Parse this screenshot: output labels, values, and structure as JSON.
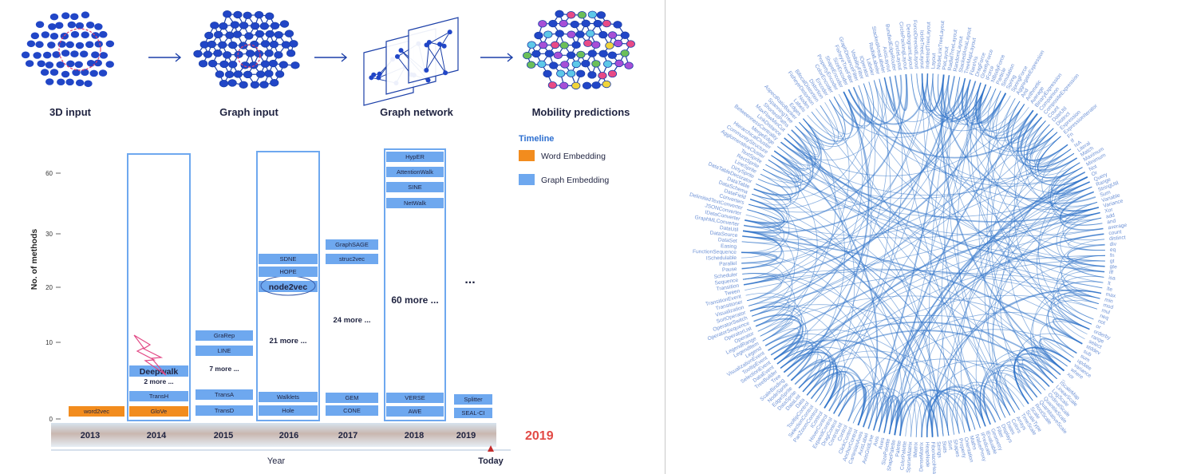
{
  "pipeline": {
    "steps": [
      {
        "label": "3D input"
      },
      {
        "label": "Graph input"
      },
      {
        "label": "Graph network"
      },
      {
        "label": "Mobility predictions"
      }
    ]
  },
  "timeline_chart": {
    "legend": {
      "title": "Timeline",
      "items": [
        {
          "label": "Word Embedding",
          "color": "#f28c1e"
        },
        {
          "label": "Graph Embedding",
          "color": "#6ea8ef"
        }
      ]
    },
    "ylabel": "No. of methods",
    "y_ticks": [
      "0",
      "10",
      "20",
      "30",
      "60"
    ],
    "xlabel": "Year",
    "years": [
      "2013",
      "2014",
      "2015",
      "2016",
      "2017",
      "2018",
      "2019"
    ],
    "current_year": "2019",
    "today_label": "Today",
    "ellipsis": "...",
    "columns": [
      {
        "year": "2013",
        "methods": [
          "word2vec"
        ],
        "more": ""
      },
      {
        "year": "2014",
        "methods": [
          "GloVe",
          "TransH",
          "Deepwalk"
        ],
        "more": "2 more ..."
      },
      {
        "year": "2015",
        "methods": [
          "TransD",
          "TransA",
          "LINE",
          "GraRep"
        ],
        "more": "7 more ..."
      },
      {
        "year": "2016",
        "methods": [
          "Hole",
          "Walklets",
          "node2vec",
          "HOPE",
          "SDNE"
        ],
        "more": "21 more ..."
      },
      {
        "year": "2017",
        "methods": [
          "CONE",
          "GEM",
          "struc2vec",
          "GraphSAGE"
        ],
        "more": "24 more ..."
      },
      {
        "year": "2018",
        "methods": [
          "AWE",
          "VERSE",
          "NetWalk",
          "SINE",
          "AttentionWalk",
          "HypER"
        ],
        "more": "60 more ..."
      },
      {
        "year": "2019",
        "methods": [
          "SEAL-CI",
          "Splitter"
        ],
        "more": ""
      }
    ]
  },
  "edge_bundle": {
    "link_color": "#2f73c9",
    "label_color": "#6f93d6",
    "nodes": [
      "FlareVis",
      "DragForce",
      "GravityForce",
      "IForce",
      "NBodyForce",
      "Particle",
      "Simulation",
      "Spring",
      "SpringForce",
      "AggregateExpression",
      "And",
      "Arithmetic",
      "Average",
      "BinaryExpression",
      "Comparison",
      "CompositeExpression",
      "Count",
      "DateUtil",
      "Distinct",
      "Expression",
      "ExpressionIterator",
      "Fn",
      "If",
      "IsA",
      "Literal",
      "Match",
      "Maximum",
      "Minimum",
      "Not",
      "Or",
      "Query",
      "Range",
      "StringUtil",
      "Sum",
      "Variable",
      "Variance",
      "Xor",
      "add",
      "and",
      "average",
      "count",
      "distinct",
      "div",
      "eq",
      "fn",
      "gt",
      "gte",
      "iff",
      "isa",
      "lt",
      "lte",
      "max",
      "min",
      "mod",
      "mul",
      "neq",
      "not",
      "or",
      "orderby",
      "range",
      "select",
      "stddev",
      "sub",
      "sum",
      "update",
      "variance",
      "where",
      "xor",
      "_",
      "IScaleMap",
      "LinearScale",
      "LogScale",
      "OrdinalScale",
      "QuantileScale",
      "QuantitativeScale",
      "RootScale",
      "Scale",
      "ScaleType",
      "TimeScale",
      "Arrays",
      "Colors",
      "Dates",
      "Displays",
      "Filter",
      "Geometry",
      "IEvaluable",
      "IPredicate",
      "IValueProxy",
      "Maths",
      "Orientation",
      "Property",
      "Shapes",
      "Sort",
      "Stats",
      "Strings",
      "FibonacciHeap",
      "HeapNode",
      "DenseMatrix",
      "IMatrix",
      "SparseMatrix",
      "ColorPalette",
      "Palette",
      "ShapePalette",
      "SizePalette",
      "Axes",
      "Axis",
      "AxisGridLine",
      "AxisLabel",
      "CartesianAxes",
      "AnchorControl",
      "ClickControl",
      "Control",
      "ControlList",
      "DragControl",
      "ExpandControl",
      "HoverControl",
      "IControl",
      "PanZoomControl",
      "SelectionControl",
      "TooltipControl",
      "Data",
      "DataList",
      "DataSprite",
      "EdgeSprite",
      "NodeSprite",
      "ScaleBinding",
      "Tree",
      "TreeBuilder",
      "DataEvent",
      "SelectionEvent",
      "TooltipEvent",
      "VisualizationEvent",
      "Legend",
      "LegendItem",
      "LegendRange",
      "Operator",
      "OperatorList",
      "OperatorSequence",
      "OperatorSwitch",
      "SortOperator",
      "Visualization",
      "Transitioner",
      "TransitionEvent",
      "Tween",
      "Transition",
      "Sequence",
      "Scheduler",
      "Pause",
      "Parallel",
      "ISchedulable",
      "FunctionSequence",
      "Easing",
      "DataSet",
      "DataSource",
      "DataUtil",
      "GraphMLConverter",
      "IDataConverter",
      "JSONConverter",
      "DelimitedTextConverter",
      "Converters",
      "DataField",
      "DataSchema",
      "DataTable",
      "DataTableDecorator",
      "DirtySprite",
      "LineSprite",
      "RectSprite",
      "TextSprite",
      "AgglomerativeCluster",
      "CommunityStructure",
      "HierarchicalCluster",
      "MergeEdge",
      "BetweennessCentrality",
      "LinkDistance",
      "MaxFlowMinCut",
      "ShortestPaths",
      "SpanningTree",
      "AspectRatioBanker",
      "Edges",
      "Labels",
      "Nodes",
      "FisheyeDistortion",
      "BifocalDistortion",
      "Distortion",
      "Encoder",
      "ColorEncoder",
      "PropertyEncoder",
      "ShapeEncoder",
      "SizeEncoder",
      "FisheyeTreeFilter",
      "GraphDistanceFilter",
      "VisibilityFilter",
      "IOperator",
      "Labeler",
      "RadialLabeler",
      "StackedAreaLabeler",
      "AxisLayout",
      "BundledEdgeRouter",
      "CircleLayout",
      "CirclePackingLayout",
      "DendrogramLayout",
      "ForceDirectedLayout",
      "IcicleTreeLayout",
      "IndentedTreeLayout",
      "Layout",
      "NodeLinkTreeLayout",
      "PieLayout",
      "RadialTreeLayout",
      "RandomLayout",
      "StackedAreaLayout",
      "TreeMapLayout"
    ]
  }
}
